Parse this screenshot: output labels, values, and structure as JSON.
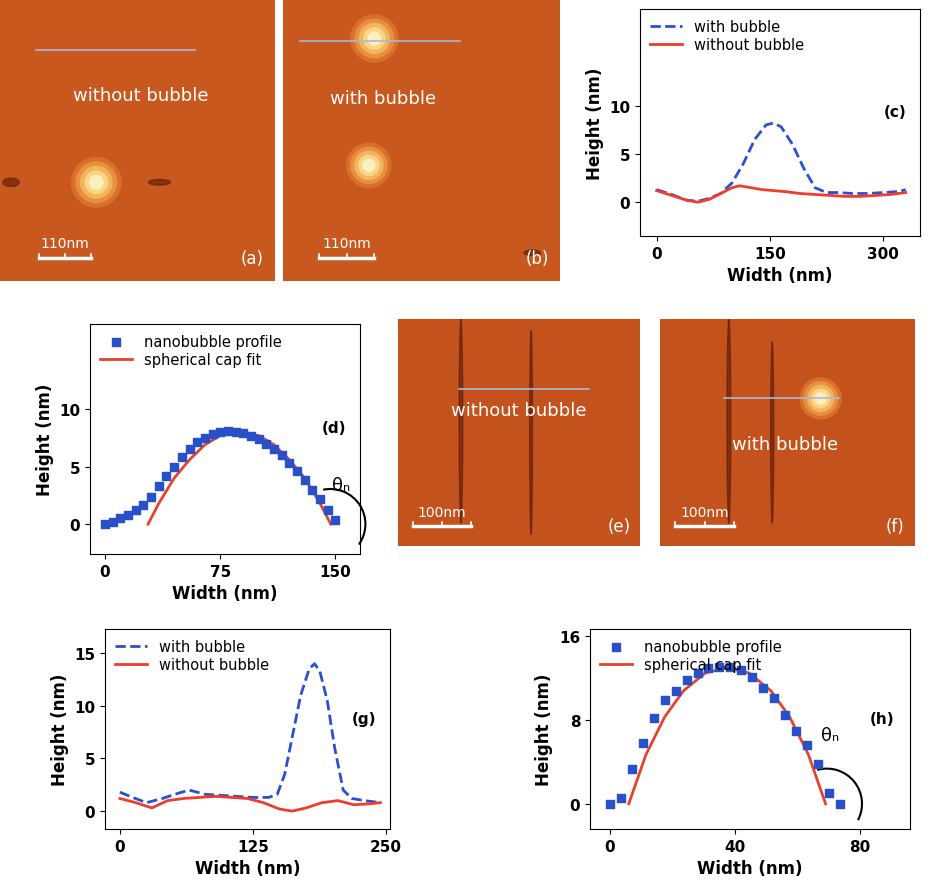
{
  "images": [
    {
      "panel": "(a)",
      "label": "without bubble",
      "scale_bar": "110nm"
    },
    {
      "panel": "(b)",
      "label": "with bubble",
      "scale_bar": "110nm"
    },
    {
      "panel": "(e)",
      "label": "without bubble",
      "scale_bar": "100nm"
    },
    {
      "panel": "(f)",
      "label": "with bubble",
      "scale_bar": "100nm"
    }
  ],
  "chart_data": [
    {
      "type": "line",
      "annotations": [
        "(c)"
      ],
      "x_label": "Width (nm)",
      "y_label": "Height (nm)",
      "xlim": [
        -22,
        349
      ],
      "xticks": [
        0,
        150,
        300
      ],
      "ylim": [
        -3.5,
        20
      ],
      "yticks": [
        0,
        5,
        10
      ],
      "legend": "upper left",
      "series": [
        {
          "name": "with bubble",
          "type": "line",
          "color": "#2a4fd0",
          "line_style": "dashed",
          "x": [
            0,
            20,
            40,
            55,
            70,
            85,
            100,
            115,
            130,
            145,
            155,
            165,
            180,
            195,
            210,
            225,
            240,
            260,
            280,
            300,
            320,
            330
          ],
          "values": [
            1.3,
            0.8,
            0.2,
            0.1,
            0.4,
            0.9,
            2.0,
            4.0,
            6.5,
            8.0,
            8.2,
            7.8,
            6.0,
            3.5,
            1.5,
            1.0,
            1.0,
            0.9,
            0.9,
            1.0,
            1.1,
            1.3
          ]
        },
        {
          "name": "without bubble",
          "type": "line",
          "color": "#f03c2c",
          "line_style": "solid",
          "x": [
            0,
            20,
            40,
            55,
            70,
            85,
            100,
            110,
            125,
            140,
            155,
            170,
            190,
            210,
            230,
            250,
            270,
            290,
            310,
            330
          ],
          "values": [
            1.2,
            0.7,
            0.2,
            0.0,
            0.3,
            0.9,
            1.5,
            1.7,
            1.5,
            1.3,
            1.2,
            1.1,
            0.9,
            0.8,
            0.7,
            0.6,
            0.6,
            0.7,
            0.8,
            1.0
          ]
        }
      ]
    },
    {
      "type": "scatter",
      "annotations": [
        "(d)",
        "θₙ"
      ],
      "x_label": "Width (nm)",
      "y_label": "Height (nm)",
      "xlim": [
        -9.8,
        166
      ],
      "xticks": [
        0,
        75,
        150
      ],
      "ylim": [
        -2.6,
        17.4
      ],
      "yticks": [
        0,
        5,
        10
      ],
      "legend": "upper left",
      "series": [
        {
          "name": "nanobubble profile",
          "type": "scatter",
          "color": "#2850c8",
          "marker": "square",
          "x": [
            0,
            5,
            10,
            15,
            20,
            25,
            30,
            35,
            40,
            45,
            50,
            55,
            60,
            65,
            70,
            75,
            80,
            85,
            90,
            95,
            100,
            105,
            110,
            115,
            120,
            125,
            130,
            135,
            140,
            145,
            150
          ],
          "values": [
            0,
            0.2,
            0.5,
            0.8,
            1.2,
            1.7,
            2.4,
            3.3,
            4.2,
            5.0,
            5.8,
            6.5,
            7.1,
            7.5,
            7.8,
            8.0,
            8.1,
            8.05,
            7.9,
            7.7,
            7.4,
            7.0,
            6.5,
            6.0,
            5.3,
            4.6,
            3.8,
            3.0,
            2.2,
            1.2,
            0.4
          ]
        },
        {
          "name": "spherical cap fit",
          "type": "line",
          "color": "#e8412c",
          "line_style": "solid",
          "x": [
            28,
            35,
            45,
            55,
            65,
            75,
            87.5,
            100,
            110,
            120,
            130,
            140,
            147
          ],
          "values": [
            0,
            1.8,
            4.0,
            5.6,
            6.9,
            7.7,
            8.0,
            7.7,
            6.9,
            5.6,
            4.0,
            1.8,
            0
          ]
        }
      ]
    },
    {
      "type": "line",
      "annotations": [
        "(g)"
      ],
      "x_label": "Width (nm)",
      "y_label": "Height (nm)",
      "xlim": [
        -14,
        254
      ],
      "xticks": [
        0,
        125,
        250
      ],
      "ylim": [
        -1.7,
        17.3
      ],
      "yticks": [
        0,
        5,
        10,
        15
      ],
      "legend": "upper left",
      "series": [
        {
          "name": "with bubble",
          "type": "line",
          "color": "#2a4fd0",
          "line_style": "dashed",
          "x": [
            0,
            12,
            25,
            40,
            55,
            65,
            80,
            95,
            110,
            125,
            140,
            148,
            155,
            162,
            170,
            178,
            183,
            188,
            195,
            202,
            210,
            218,
            230,
            245
          ],
          "values": [
            1.8,
            1.3,
            0.8,
            1.2,
            1.7,
            2.0,
            1.6,
            1.5,
            1.4,
            1.3,
            1.3,
            1.6,
            3.5,
            7.0,
            11.0,
            13.5,
            14.0,
            13.3,
            10.5,
            6.0,
            2.0,
            1.2,
            1.0,
            0.8
          ]
        },
        {
          "name": "without bubble",
          "type": "line",
          "color": "#f03c2c",
          "line_style": "solid",
          "x": [
            0,
            15,
            30,
            45,
            60,
            75,
            90,
            105,
            120,
            135,
            150,
            162,
            175,
            190,
            205,
            220,
            235,
            245
          ],
          "values": [
            1.2,
            0.8,
            0.3,
            1.0,
            1.2,
            1.3,
            1.4,
            1.3,
            1.2,
            0.8,
            0.2,
            0.0,
            0.3,
            0.8,
            1.0,
            0.6,
            0.7,
            0.8
          ]
        }
      ]
    },
    {
      "type": "scatter",
      "annotations": [
        "(h)",
        "θₙ"
      ],
      "x_label": "Width (nm)",
      "y_label": "Height (nm)",
      "xlim": [
        -6.4,
        96
      ],
      "xticks": [
        0,
        40,
        80
      ],
      "ylim": [
        -2.4,
        16.7
      ],
      "yticks": [
        0,
        8,
        16
      ],
      "legend": "upper left",
      "series": [
        {
          "name": "nanobubble profile",
          "type": "scatter",
          "color": "#2850c8",
          "marker": "square",
          "x": [
            0,
            3.5,
            7,
            10.5,
            14,
            17.5,
            21,
            24.5,
            28,
            31.5,
            35,
            38.5,
            42,
            45.5,
            49,
            52.5,
            56,
            59.5,
            63,
            66.5,
            70,
            73.5
          ],
          "values": [
            0,
            0.6,
            3.3,
            5.8,
            8.2,
            9.9,
            10.8,
            11.8,
            12.5,
            13.0,
            13.1,
            13.1,
            12.8,
            12.1,
            11.1,
            10.1,
            8.5,
            7.0,
            5.6,
            3.8,
            1.0,
            0.0
          ]
        },
        {
          "name": "spherical cap fit",
          "type": "line",
          "color": "#e8412c",
          "line_style": "solid",
          "x": [
            6,
            11.5,
            17.5,
            23.5,
            30.5,
            37.5,
            44.5,
            51.5,
            57.5,
            63.5,
            69
          ],
          "values": [
            0,
            4.7,
            8.3,
            10.8,
            12.5,
            13,
            12.5,
            10.8,
            8.3,
            4.7,
            0
          ]
        }
      ]
    }
  ]
}
